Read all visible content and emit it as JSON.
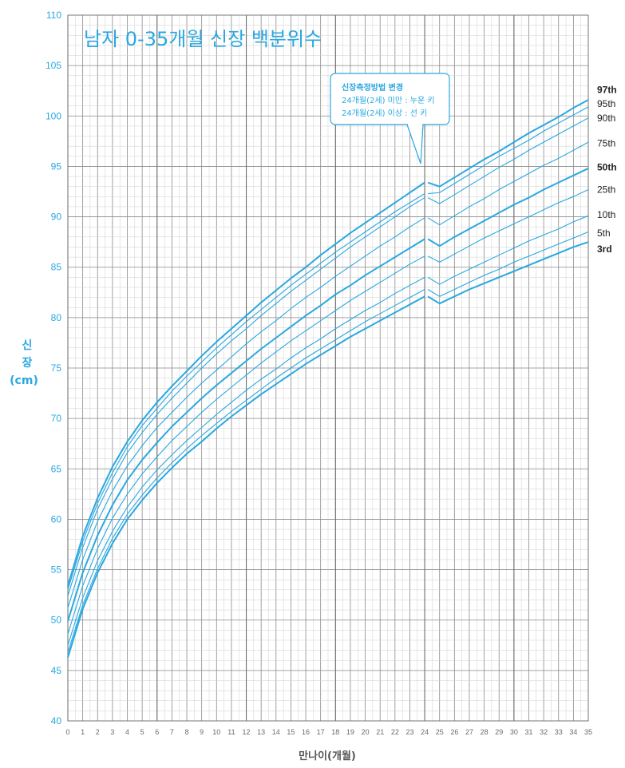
{
  "chart_data": {
    "type": "line",
    "title": "남자 0-35개월 신장 백분위수",
    "xlabel": "만나이(개월)",
    "ylabel": [
      "신",
      "장",
      "(cm)"
    ],
    "xlim": [
      0,
      35
    ],
    "ylim": [
      40,
      110
    ],
    "x_ticks": [
      0,
      1,
      2,
      3,
      4,
      5,
      6,
      7,
      8,
      9,
      10,
      11,
      12,
      13,
      14,
      15,
      16,
      17,
      18,
      19,
      20,
      21,
      22,
      23,
      24,
      25,
      26,
      27,
      28,
      29,
      30,
      31,
      32,
      33,
      34,
      35
    ],
    "y_ticks": [
      40,
      45,
      50,
      55,
      60,
      65,
      70,
      75,
      80,
      85,
      90,
      95,
      100,
      105,
      110
    ],
    "grid": true,
    "break_at": 24,
    "annotation": {
      "title": "신장측정방법 변경",
      "line1": "24개월(2세) 미만 : 누운 키",
      "line2": "24개월(2세) 이상 : 선 키"
    },
    "x": [
      0,
      1,
      2,
      3,
      4,
      5,
      6,
      7,
      8,
      9,
      10,
      11,
      12,
      13,
      14,
      15,
      16,
      17,
      18,
      19,
      20,
      21,
      22,
      23,
      24,
      25,
      26,
      27,
      28,
      29,
      30,
      31,
      32,
      33,
      34,
      35
    ],
    "series": [
      {
        "name": "3rd",
        "bold": true,
        "values": [
          46.3,
          51.1,
          54.7,
          57.6,
          60.0,
          61.9,
          63.6,
          65.1,
          66.5,
          67.7,
          69.0,
          70.2,
          71.3,
          72.4,
          73.4,
          74.4,
          75.4,
          76.3,
          77.2,
          78.1,
          78.9,
          79.7,
          80.5,
          81.3,
          82.1,
          81.4,
          82.1,
          82.8,
          83.4,
          84.0,
          84.6,
          85.2,
          85.8,
          86.4,
          87.0,
          87.5
        ]
      },
      {
        "name": "5th",
        "bold": false,
        "values": [
          46.8,
          51.5,
          55.1,
          58.1,
          60.5,
          62.4,
          64.1,
          65.6,
          67.0,
          68.3,
          69.5,
          70.7,
          71.8,
          72.9,
          74.0,
          75.0,
          76.0,
          76.9,
          77.8,
          78.7,
          79.6,
          80.4,
          81.2,
          82.0,
          82.8,
          82.1,
          82.8,
          83.5,
          84.2,
          84.8,
          85.5,
          86.1,
          86.7,
          87.3,
          87.9,
          88.5
        ]
      },
      {
        "name": "10th",
        "bold": false,
        "values": [
          47.5,
          52.2,
          55.9,
          58.8,
          61.2,
          63.2,
          64.9,
          66.4,
          67.8,
          69.1,
          70.4,
          71.6,
          72.8,
          73.9,
          74.9,
          76.0,
          77.0,
          77.9,
          78.9,
          79.8,
          80.7,
          81.5,
          82.4,
          83.2,
          84.0,
          83.3,
          84.1,
          84.8,
          85.5,
          86.2,
          86.9,
          87.6,
          88.2,
          88.8,
          89.5,
          90.1
        ]
      },
      {
        "name": "25th",
        "bold": false,
        "values": [
          48.6,
          53.4,
          57.1,
          60.1,
          62.5,
          64.5,
          66.2,
          67.8,
          69.2,
          70.6,
          71.9,
          73.1,
          74.3,
          75.5,
          76.6,
          77.7,
          78.7,
          79.7,
          80.7,
          81.7,
          82.6,
          83.5,
          84.4,
          85.3,
          86.1,
          85.5,
          86.3,
          87.1,
          87.9,
          88.6,
          89.3,
          90.0,
          90.7,
          91.4,
          92.0,
          92.7
        ]
      },
      {
        "name": "50th",
        "bold": true,
        "values": [
          49.9,
          54.7,
          58.4,
          61.4,
          63.9,
          65.9,
          67.6,
          69.2,
          70.6,
          72.0,
          73.3,
          74.5,
          75.7,
          76.9,
          78.0,
          79.1,
          80.2,
          81.2,
          82.3,
          83.2,
          84.2,
          85.1,
          86.0,
          86.9,
          87.8,
          87.1,
          88.0,
          88.8,
          89.6,
          90.4,
          91.2,
          91.9,
          92.7,
          93.4,
          94.1,
          94.8
        ]
      },
      {
        "name": "75th",
        "bold": false,
        "values": [
          51.2,
          56.0,
          59.8,
          62.8,
          65.3,
          67.3,
          69.1,
          70.6,
          72.1,
          73.5,
          74.8,
          76.1,
          77.4,
          78.6,
          79.7,
          80.9,
          82.0,
          83.0,
          84.1,
          85.1,
          86.1,
          87.1,
          88.0,
          89.0,
          89.9,
          89.2,
          90.1,
          91.0,
          91.8,
          92.7,
          93.5,
          94.3,
          95.1,
          95.8,
          96.6,
          97.4
        ]
      },
      {
        "name": "90th",
        "bold": false,
        "values": [
          52.4,
          57.2,
          61.0,
          64.0,
          66.6,
          68.6,
          70.4,
          72.0,
          73.5,
          75.0,
          76.4,
          77.7,
          78.9,
          80.2,
          81.4,
          82.6,
          83.7,
          84.8,
          85.9,
          87.0,
          88.0,
          89.0,
          90.0,
          91.0,
          91.9,
          91.3,
          92.2,
          93.1,
          94.0,
          94.9,
          95.7,
          96.6,
          97.4,
          98.2,
          99.0,
          99.8
        ]
      },
      {
        "name": "95th",
        "bold": false,
        "values": [
          53.0,
          57.8,
          61.6,
          64.6,
          67.2,
          69.3,
          71.0,
          72.7,
          74.2,
          75.6,
          77.0,
          78.3,
          79.6,
          80.8,
          82.0,
          83.2,
          84.3,
          85.4,
          86.5,
          87.5,
          88.5,
          89.5,
          90.5,
          91.4,
          92.3,
          92.4,
          93.3,
          94.2,
          95.1,
          96.0,
          96.8,
          97.6,
          98.5,
          99.3,
          100.1,
          100.9
        ]
      },
      {
        "name": "97th",
        "bold": true,
        "values": [
          53.4,
          58.3,
          62.1,
          65.2,
          67.7,
          69.8,
          71.6,
          73.2,
          74.7,
          76.2,
          77.6,
          78.9,
          80.2,
          81.5,
          82.7,
          83.9,
          85.0,
          86.2,
          87.3,
          88.4,
          89.4,
          90.4,
          91.4,
          92.4,
          93.4,
          93.0,
          93.9,
          94.8,
          95.7,
          96.5,
          97.4,
          98.3,
          99.1,
          99.9,
          100.8,
          101.6
        ]
      }
    ],
    "percentile_labels": [
      {
        "text": "97th",
        "bold": true,
        "at": 102.6
      },
      {
        "text": "95th",
        "bold": false,
        "at": 101.2
      },
      {
        "text": "90th",
        "bold": false,
        "at": 99.8
      },
      {
        "text": "75th",
        "bold": false,
        "at": 97.3
      },
      {
        "text": "50th",
        "bold": true,
        "at": 94.9
      },
      {
        "text": "25th",
        "bold": false,
        "at": 92.7
      },
      {
        "text": "10th",
        "bold": false,
        "at": 90.2
      },
      {
        "text": "5th",
        "bold": false,
        "at": 88.4
      },
      {
        "text": "3rd",
        "bold": true,
        "at": 86.8
      }
    ]
  },
  "colors": {
    "curve": "#29a8e0",
    "grid_major": "#8a8a8a",
    "grid_minor": "#cfcfcf",
    "axis_label": "#29a8e0"
  }
}
